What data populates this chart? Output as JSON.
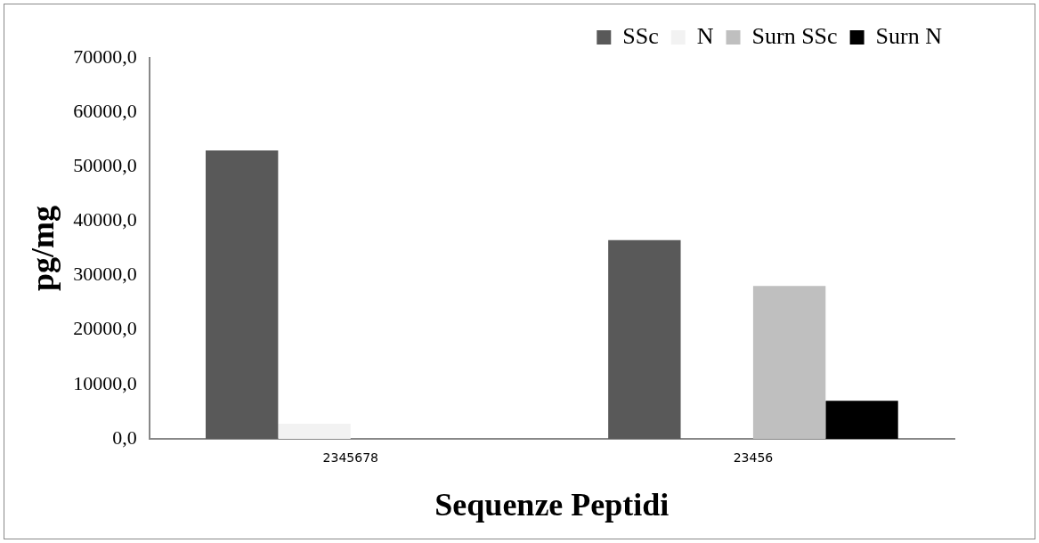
{
  "chart_data": {
    "type": "bar",
    "xlabel": "Sequenze Peptidi",
    "ylabel": "pg/mg",
    "categories": [
      "2345678",
      "23456"
    ],
    "series": [
      {
        "name": "SSc",
        "color": "#595959",
        "values": [
          53000,
          36500
        ]
      },
      {
        "name": "N",
        "color": "#f2f2f2",
        "values": [
          2800,
          0
        ]
      },
      {
        "name": "Surn SSc",
        "color": "#bfbfbf",
        "values": [
          0,
          28100
        ]
      },
      {
        "name": "Surn N",
        "color": "#000000",
        "values": [
          0,
          7000
        ]
      }
    ],
    "ylim": [
      0,
      70000
    ],
    "yticks": [
      {
        "value": 0,
        "label": "0,0"
      },
      {
        "value": 10000,
        "label": "10000,0"
      },
      {
        "value": 20000,
        "label": "20000,0"
      },
      {
        "value": 30000,
        "label": "30000,0"
      },
      {
        "value": 40000,
        "label": "40000,0"
      },
      {
        "value": 50000,
        "label": "50000,0"
      },
      {
        "value": 60000,
        "label": "60000,0"
      },
      {
        "value": 70000,
        "label": "70000,0"
      }
    ],
    "grid": false,
    "legend": "top"
  }
}
